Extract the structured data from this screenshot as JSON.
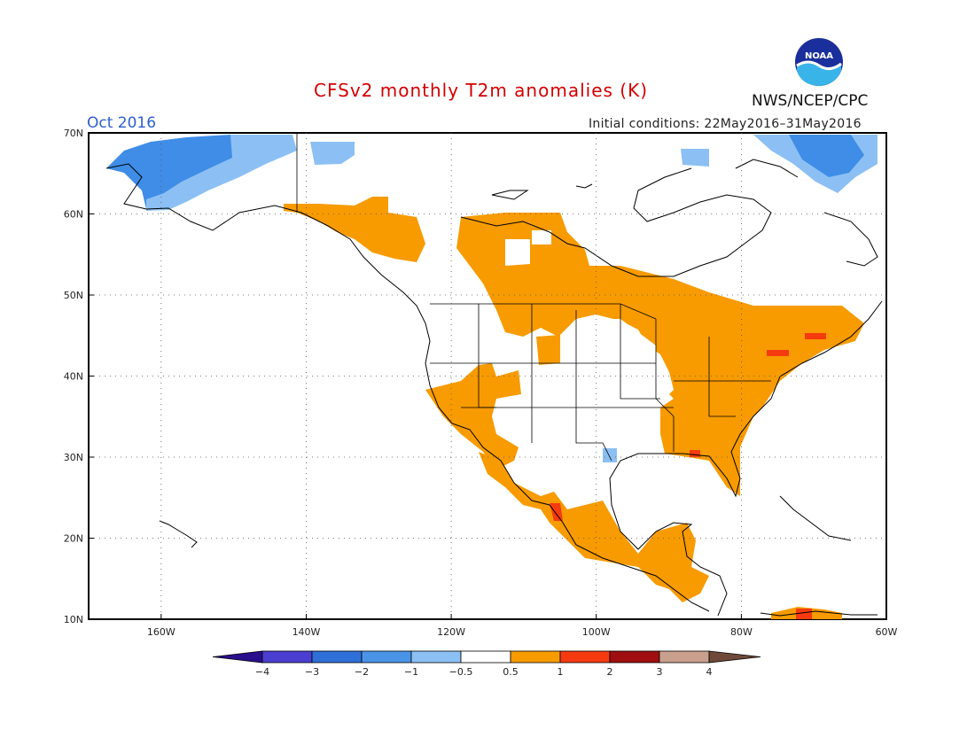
{
  "header": {
    "title": "CFSv2 monthly T2m anomalies (K)",
    "period": "Oct 2016",
    "initial_conditions": "Initial conditions: 22May2016–31May2016",
    "agency": "NWS/NCEP/CPC",
    "logo_text": "NOAA"
  },
  "axes": {
    "lat_labels": [
      "70N",
      "60N",
      "50N",
      "40N",
      "30N",
      "20N",
      "10N"
    ],
    "lon_labels": [
      "160W",
      "140W",
      "120W",
      "100W",
      "80W",
      "60W"
    ],
    "lat_range": [
      10,
      70
    ],
    "lon_range": [
      -170,
      -60
    ],
    "grid": true
  },
  "colorbar": {
    "labels": [
      "−4",
      "−3",
      "−2",
      "−1",
      "−0.5",
      "0.5",
      "1",
      "2",
      "3",
      "4"
    ],
    "colors": [
      "#2a0f8c",
      "#4a3fd0",
      "#2f6fd8",
      "#4a94e8",
      "#8cc0f4",
      "#ffffff",
      "#f79b00",
      "#f53a10",
      "#a00f0f",
      "#c9a08e",
      "#6f4a3a"
    ]
  },
  "icons": [
    "noaa-logo-icon"
  ]
}
